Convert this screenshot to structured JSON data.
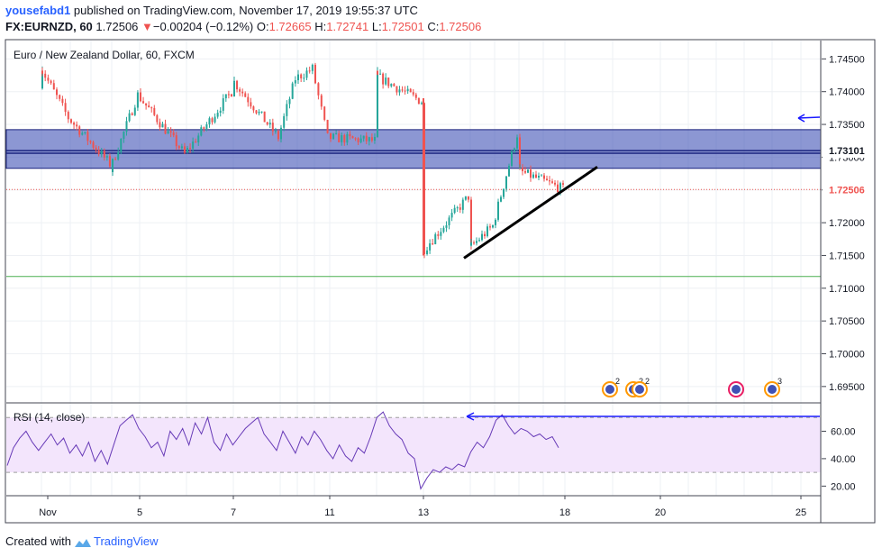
{
  "header": {
    "user": "yousefabd1",
    "published_text": "published on TradingView.com, November 17, 2019 19:55:37 UTC",
    "symbol": "FX:EURNZD, 60",
    "last": "1.72506",
    "change_arrow": "▼",
    "change": "−0.00204 (−0.12%)",
    "o_label": "O:",
    "o": "1.72665",
    "h_label": "H:",
    "h": "1.72741",
    "l_label": "L:",
    "l": "1.72501",
    "c_label": "C:",
    "c": "1.72506"
  },
  "main_label": "Euro / New Zealand Dollar, 60, FXCM",
  "rsi_label": "RSI (14, close)",
  "footer": {
    "created_with": "Created with",
    "brand": "TradingView"
  },
  "colors": {
    "up": "#26a69a",
    "down": "#ef5350",
    "zone_fill": "#3f51b5",
    "zone_line": "#1a237e",
    "support_line": "#4caf50",
    "rsi_line": "#673ab7",
    "rsi_band": "#f3e5fc",
    "arrow": "#1a1aff"
  },
  "chart_data": [
    {
      "type": "candlestick",
      "title": "Euro / New Zealand Dollar, 60, FXCM",
      "price_axis": {
        "ticks": [
          "1.74500",
          "1.74000",
          "1.73500",
          "1.73000",
          "1.72500",
          "1.72000",
          "1.71500",
          "1.71000",
          "1.70500",
          "1.70000",
          "1.69500"
        ],
        "ylim": [
          1.6925,
          1.7478
        ]
      },
      "x_axis": {
        "ticks": [
          "Nov",
          "5",
          "7",
          "11",
          "13",
          "18",
          "20",
          "25"
        ]
      },
      "price_labels": [
        {
          "value": 1.73101,
          "text": "1.73101",
          "color": "#131722"
        },
        {
          "value": 1.72506,
          "text": "1.72506",
          "color": "#ef5350"
        }
      ],
      "last_price": 1.72506,
      "resistance_zone": {
        "from": 1.7283,
        "to": 1.7342
      },
      "zone_lines": [
        1.7306,
        1.731
      ],
      "support_level": 1.7118,
      "trendline": {
        "from": {
          "x": "14 Nov",
          "y": 1.7146
        },
        "to": {
          "x": "17 Nov",
          "y": 1.7285
        }
      },
      "annotations": [
        "horizontal arrow pointing to resistance zone"
      ],
      "price_path_approx": {
        "points": [
          [
            "1 Nov",
            1.7405
          ],
          [
            "1 Nov",
            1.744
          ],
          [
            "2 Nov",
            1.736
          ],
          [
            "4 Nov",
            1.729
          ],
          [
            "4 Nov",
            1.728
          ],
          [
            "5 Nov",
            1.7395
          ],
          [
            "6 Nov",
            1.7305
          ],
          [
            "7 Nov",
            1.74
          ],
          [
            "7 Nov",
            1.742
          ],
          [
            "8 Nov",
            1.733
          ],
          [
            "9 Nov",
            1.742
          ],
          [
            "10 Nov",
            1.7435
          ],
          [
            "11 Nov",
            1.733
          ],
          [
            "12 Nov",
            1.7325
          ],
          [
            "12 Nov",
            1.7425
          ],
          [
            "13 Nov",
            1.7385
          ],
          [
            "13 Nov",
            1.7155
          ],
          [
            "14 Nov",
            1.724
          ],
          [
            "14 Nov",
            1.716
          ],
          [
            "15 Nov",
            1.7195
          ],
          [
            "16 Nov",
            1.7335
          ],
          [
            "16 Nov",
            1.728
          ],
          [
            "17 Nov",
            1.7265
          ],
          [
            "18 Nov",
            1.7251
          ]
        ]
      },
      "event_markers": [
        "2",
        "2",
        "2",
        "",
        "3"
      ]
    },
    {
      "type": "line",
      "title": "RSI (14, close)",
      "y_axis": {
        "ticks": [
          "60.00",
          "40.00",
          "20.00"
        ],
        "ylim": [
          13,
          80
        ]
      },
      "bands": [
        30,
        70
      ],
      "annotations": [
        "horizontal arrow at RSI overbought level"
      ],
      "series": [
        {
          "values": [
            35,
            48,
            55,
            60,
            52,
            46,
            52,
            58,
            50,
            55,
            44,
            50,
            42,
            52,
            38,
            46,
            36,
            50,
            64,
            68,
            72,
            62,
            56,
            48,
            52,
            42,
            60,
            54,
            62,
            50,
            66,
            58,
            70,
            52,
            46,
            58,
            50,
            56,
            62,
            66,
            70,
            58,
            52,
            46,
            60,
            52,
            44,
            56,
            50,
            60,
            54,
            46,
            40,
            50,
            42,
            38,
            48,
            44,
            56,
            70,
            74,
            64,
            58,
            54,
            44,
            40,
            18,
            26,
            32,
            30,
            34,
            32,
            36,
            34,
            45,
            52,
            48,
            56,
            68,
            72,
            64,
            58,
            62,
            60,
            56,
            58,
            54,
            56,
            48
          ]
        }
      ]
    }
  ]
}
